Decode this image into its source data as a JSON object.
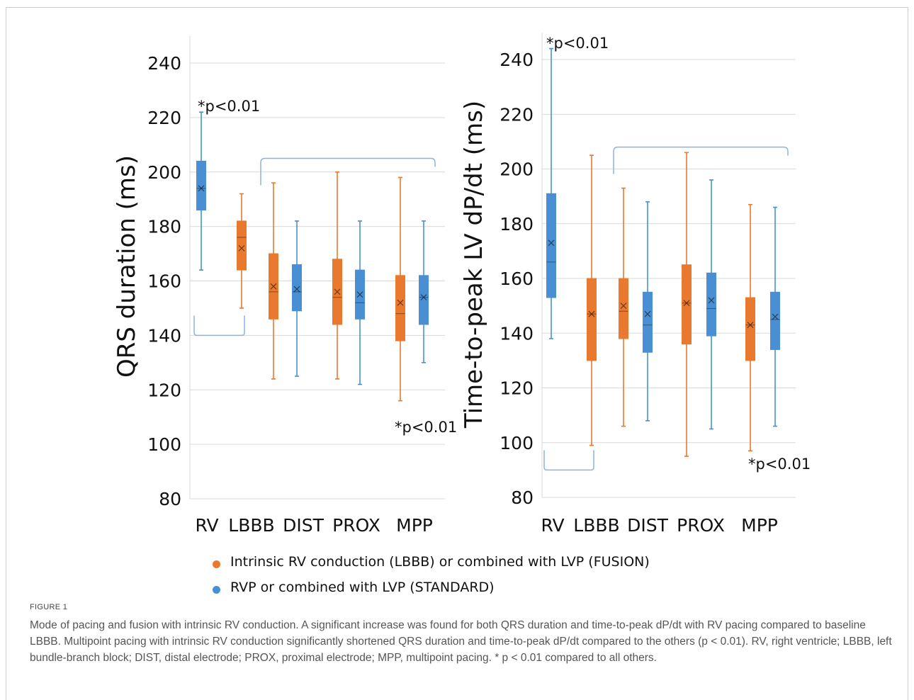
{
  "colors": {
    "fusion": "#e8792f",
    "standard": "#4a8fd4",
    "bracket": "#8ab4e0"
  },
  "chart_data": [
    {
      "type": "box",
      "ylabel": "QRS duration (ms)",
      "ylim": [
        80,
        240
      ],
      "yticks": [
        80,
        100,
        120,
        140,
        160,
        180,
        200,
        220,
        240
      ],
      "categories": [
        "RV",
        "LBBB",
        "DIST",
        "PROX",
        "MPP"
      ],
      "grid": true,
      "boxes": [
        {
          "category": "RV",
          "series": "standard",
          "min": 164,
          "q1": 186,
          "median": 194,
          "mean": 194,
          "q3": 204,
          "max": 222
        },
        {
          "category": "LBBB",
          "series": "fusion",
          "min": 150,
          "q1": 164,
          "median": 176,
          "mean": 172,
          "q3": 182,
          "max": 192
        },
        {
          "category": "DIST",
          "series": "fusion",
          "min": 124,
          "q1": 146,
          "median": 156,
          "mean": 158,
          "q3": 170,
          "max": 196
        },
        {
          "category": "DIST",
          "series": "standard",
          "min": 125,
          "q1": 149,
          "median": 156,
          "mean": 157,
          "q3": 166,
          "max": 182
        },
        {
          "category": "PROX",
          "series": "fusion",
          "min": 124,
          "q1": 144,
          "median": 154,
          "mean": 156,
          "q3": 168,
          "max": 200
        },
        {
          "category": "PROX",
          "series": "standard",
          "min": 122,
          "q1": 146,
          "median": 152,
          "mean": 155,
          "q3": 164,
          "max": 182
        },
        {
          "category": "MPP",
          "series": "fusion",
          "min": 116,
          "q1": 138,
          "median": 148,
          "mean": 152,
          "q3": 162,
          "max": 198
        },
        {
          "category": "MPP",
          "series": "standard",
          "min": 130,
          "q1": 144,
          "median": 154,
          "mean": 154,
          "q3": 162,
          "max": 182
        }
      ],
      "annotations": [
        {
          "text": "*p<0.01",
          "anchor": "RV",
          "position": "above"
        },
        {
          "text": "*p<0.01",
          "anchor": "MPP",
          "position": "below"
        }
      ],
      "brackets": [
        {
          "from": "RV",
          "to": "LBBB",
          "orientation": "open-up",
          "y": 140
        },
        {
          "from": "DIST",
          "to": "MPP",
          "orientation": "open-down",
          "y": 205
        }
      ]
    },
    {
      "type": "box",
      "ylabel": "Time-to-peak LV dP/dt (ms)",
      "ylim": [
        80,
        240
      ],
      "yticks": [
        80,
        100,
        120,
        140,
        160,
        180,
        200,
        220,
        240
      ],
      "categories": [
        "RV",
        "LBBB",
        "DIST",
        "PROX",
        "MPP"
      ],
      "grid": true,
      "boxes": [
        {
          "category": "RV",
          "series": "standard",
          "min": 138,
          "q1": 153,
          "median": 166,
          "mean": 173,
          "q3": 191,
          "max": 244
        },
        {
          "category": "LBBB",
          "series": "fusion",
          "min": 99,
          "q1": 130,
          "median": 147,
          "mean": 147,
          "q3": 160,
          "max": 205
        },
        {
          "category": "DIST",
          "series": "fusion",
          "min": 106,
          "q1": 138,
          "median": 148,
          "mean": 150,
          "q3": 160,
          "max": 193
        },
        {
          "category": "DIST",
          "series": "standard",
          "min": 108,
          "q1": 133,
          "median": 143,
          "mean": 147,
          "q3": 155,
          "max": 188
        },
        {
          "category": "PROX",
          "series": "fusion",
          "min": 95,
          "q1": 136,
          "median": 151,
          "mean": 151,
          "q3": 165,
          "max": 206
        },
        {
          "category": "PROX",
          "series": "standard",
          "min": 105,
          "q1": 139,
          "median": 149,
          "mean": 152,
          "q3": 162,
          "max": 196
        },
        {
          "category": "MPP",
          "series": "fusion",
          "min": 97,
          "q1": 130,
          "median": 143,
          "mean": 143,
          "q3": 153,
          "max": 187
        },
        {
          "category": "MPP",
          "series": "standard",
          "min": 106,
          "q1": 134,
          "median": 145,
          "mean": 146,
          "q3": 155,
          "max": 186
        }
      ],
      "annotations": [
        {
          "text": "*p<0.01",
          "anchor": "RV",
          "position": "above"
        },
        {
          "text": "*p<0.01",
          "anchor": "MPP",
          "position": "below"
        }
      ],
      "brackets": [
        {
          "from": "RV",
          "to": "LBBB",
          "orientation": "open-up",
          "y": 90
        },
        {
          "from": "DIST",
          "to": "MPP",
          "orientation": "open-down",
          "y": 208
        }
      ]
    }
  ],
  "legend": [
    {
      "series": "fusion",
      "label": "Intrinsic RV conduction (LBBB) or combined with LVP (FUSION)"
    },
    {
      "series": "standard",
      "label": "RVP or combined with LVP (STANDARD)"
    }
  ],
  "figure_label": "FIGURE 1",
  "caption": "Mode of pacing and fusion with intrinsic RV conduction. A significant increase was found for both QRS duration and time-to-peak dP/dt with RV pacing compared to baseline LBBB. Multipoint pacing with intrinsic RV conduction significantly shortened QRS duration and time-to-peak dP/dt compared to the others (p < 0.01). RV, right ventricle; LBBB, left bundle-branch block; DIST, distal electrode; PROX, proximal electrode; MPP, multipoint pacing. * p < 0.01 compared to all others."
}
